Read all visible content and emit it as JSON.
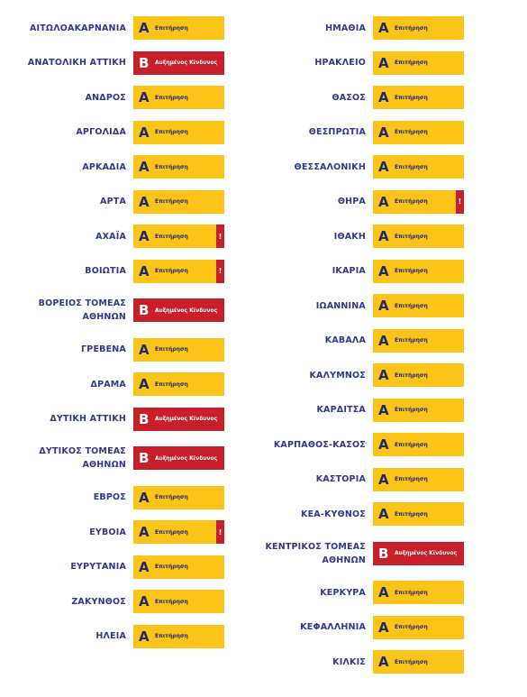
{
  "levels": {
    "A": "Επιτήρηση",
    "B": "Αυξημένος Κίνδυνος"
  },
  "flag": "!",
  "columns": [
    [
      {
        "name": [
          "ΑΙΤΩΛΟΑΚΑΡΝΑΝΙΑ"
        ],
        "level": "A"
      },
      {
        "name": [
          "ΑΝΑΤΟΛΙΚΗ ΑΤΤΙΚΗ"
        ],
        "level": "B"
      },
      {
        "name": [
          "ΑΝΔΡΟΣ"
        ],
        "level": "A"
      },
      {
        "name": [
          "ΑΡΓΟΛΙΔΑ"
        ],
        "level": "A"
      },
      {
        "name": [
          "ΑΡΚΑΔΙΑ"
        ],
        "level": "A"
      },
      {
        "name": [
          "ΑΡΤΑ"
        ],
        "level": "A"
      },
      {
        "name": [
          "ΑΧΑΪΑ"
        ],
        "level": "A",
        "flagged": true
      },
      {
        "name": [
          "ΒΟΙΩΤΙΑ"
        ],
        "level": "A",
        "flagged": true
      },
      {
        "name": [
          "ΒΟΡΕΙΟΣ ΤΟΜΕΑΣ",
          "ΑΘΗΝΩΝ"
        ],
        "level": "B"
      },
      {
        "name": [
          "ΓΡΕΒΕΝΑ"
        ],
        "level": "A"
      },
      {
        "name": [
          "ΔΡΑΜΑ"
        ],
        "level": "A"
      },
      {
        "name": [
          "ΔΥΤΙΚΗ ΑΤΤΙΚΗ"
        ],
        "level": "B"
      },
      {
        "name": [
          "ΔΥΤΙΚΟΣ ΤΟΜΕΑΣ",
          "ΑΘΗΝΩΝ"
        ],
        "level": "B"
      },
      {
        "name": [
          "ΕΒΡΟΣ"
        ],
        "level": "A"
      },
      {
        "name": [
          "ΕΥΒΟΙΑ"
        ],
        "level": "A",
        "flagged": true
      },
      {
        "name": [
          "ΕΥΡΥΤΑΝΙΑ"
        ],
        "level": "A"
      },
      {
        "name": [
          "ΖΑΚΥΝΘΟΣ"
        ],
        "level": "A"
      },
      {
        "name": [
          "ΗΛΕΙΑ"
        ],
        "level": "A"
      }
    ],
    [
      {
        "name": [
          "ΗΜΑΘΙΑ"
        ],
        "level": "A"
      },
      {
        "name": [
          "ΗΡΑΚΛΕΙΟ"
        ],
        "level": "A"
      },
      {
        "name": [
          "ΘΑΣΟΣ"
        ],
        "level": "A"
      },
      {
        "name": [
          "ΘΕΣΠΡΩΤΙΑ"
        ],
        "level": "A"
      },
      {
        "name": [
          "ΘΕΣΣΑΛΟΝΙΚΗ"
        ],
        "level": "A"
      },
      {
        "name": [
          "ΘΗΡΑ"
        ],
        "level": "A",
        "flagged": true
      },
      {
        "name": [
          "ΙΘΑΚΗ"
        ],
        "level": "A"
      },
      {
        "name": [
          "ΙΚΑΡΙΑ"
        ],
        "level": "A"
      },
      {
        "name": [
          "ΙΩΑΝΝΙΝΑ"
        ],
        "level": "A"
      },
      {
        "name": [
          "ΚΑΒΑΛΑ"
        ],
        "level": "A"
      },
      {
        "name": [
          "ΚΑΛΥΜΝΟΣ"
        ],
        "level": "A"
      },
      {
        "name": [
          "ΚΑΡΔΙΤΣΑ"
        ],
        "level": "A"
      },
      {
        "name": [
          "ΚΑΡΠΑΘΟΣ-ΚΑΣΟΣ"
        ],
        "level": "A"
      },
      {
        "name": [
          "ΚΑΣΤΟΡΙΑ"
        ],
        "level": "A"
      },
      {
        "name": [
          "ΚΕΑ-ΚΥΘΝΟΣ"
        ],
        "level": "A"
      },
      {
        "name": [
          "ΚΕΝΤΡΙΚΟΣ ΤΟΜΕΑΣ",
          "ΑΘΗΝΩΝ"
        ],
        "level": "B"
      },
      {
        "name": [
          "ΚΕΡΚΥΡΑ"
        ],
        "level": "A"
      },
      {
        "name": [
          "ΚΕΦΑΛΛΗΝΙΑ"
        ],
        "level": "A"
      },
      {
        "name": [
          "ΚΙΛΚΙΣ"
        ],
        "level": "A"
      }
    ]
  ]
}
